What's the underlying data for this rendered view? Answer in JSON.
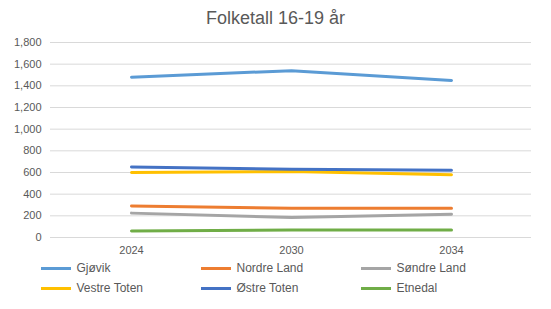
{
  "chart_data": {
    "type": "line",
    "title": "Folketall 16-19 år",
    "categories": [
      "2024",
      "2030",
      "2034"
    ],
    "series": [
      {
        "name": "Gjøvik",
        "color": "#5b9bd5",
        "values": [
          1480,
          1540,
          1450
        ]
      },
      {
        "name": "Nordre Land",
        "color": "#ed7d31",
        "values": [
          290,
          270,
          270
        ]
      },
      {
        "name": "Søndre Land",
        "color": "#a5a5a5",
        "values": [
          225,
          185,
          215
        ]
      },
      {
        "name": "Vestre Toten",
        "color": "#ffc000",
        "values": [
          600,
          610,
          580
        ]
      },
      {
        "name": "Østre Toten",
        "color": "#4472c4",
        "values": [
          650,
          630,
          620
        ]
      },
      {
        "name": "Etnedal",
        "color": "#70ad47",
        "values": [
          60,
          70,
          70
        ]
      }
    ],
    "ylim": [
      0,
      1800
    ],
    "yticks": [
      0,
      200,
      400,
      600,
      800,
      1000,
      1200,
      1400,
      1600,
      1800
    ],
    "grid": true,
    "legend": "bottom"
  }
}
